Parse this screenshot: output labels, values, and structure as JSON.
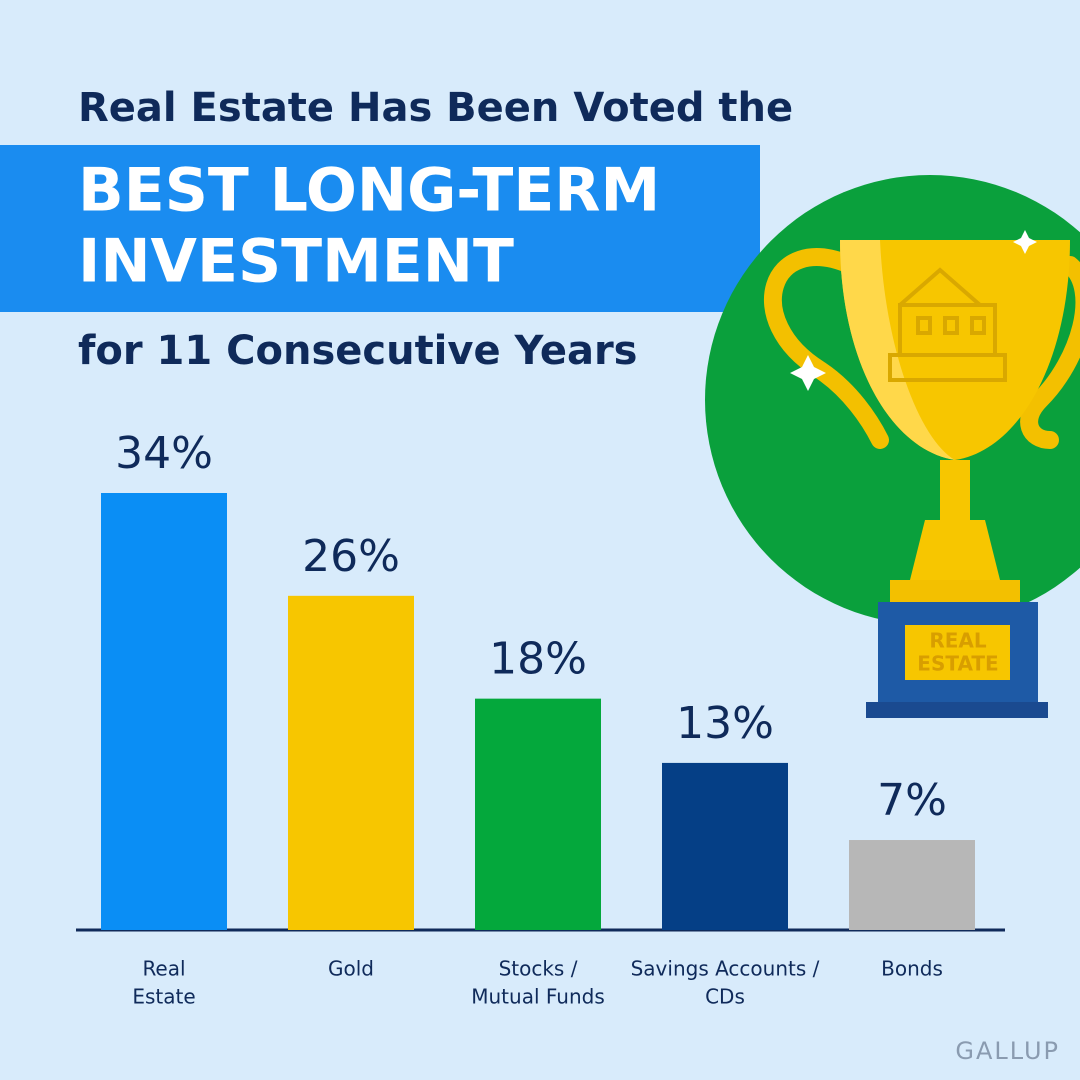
{
  "chart_data": {
    "type": "bar",
    "heading": "Real Estate Has Been Voted the",
    "title_lines": [
      "BEST LONG-TERM",
      "INVESTMENT"
    ],
    "subtitle": "for 11 Consecutive Years",
    "categories": [
      [
        "Real",
        "Estate"
      ],
      [
        "Gold"
      ],
      [
        "Stocks /",
        "Mutual Funds"
      ],
      [
        "Savings Accounts /",
        "CDs"
      ],
      [
        "Bonds"
      ]
    ],
    "values": [
      34,
      26,
      18,
      13,
      7
    ],
    "value_labels": [
      "34%",
      "26%",
      "18%",
      "13%",
      "7%"
    ],
    "colors": [
      "#0a8ef5",
      "#f7c600",
      "#04a83c",
      "#053f86",
      "#b7b7b7"
    ],
    "trophy_label": [
      "REAL",
      "ESTATE"
    ],
    "source": "GALLUP"
  }
}
